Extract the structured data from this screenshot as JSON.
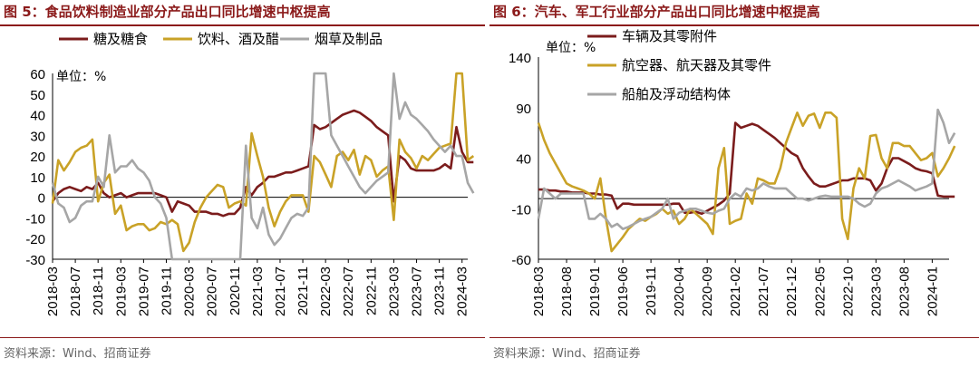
{
  "charts": [
    {
      "title": "图 5：食品饮料制造业部分产品出口同比增速中枢提高",
      "source": "资料来源：Wind、招商证券",
      "chart_data": {
        "type": "line",
        "unit_label": "单位：%",
        "ylim": [
          -30,
          60
        ],
        "yticks": [
          -30,
          -20,
          -10,
          0,
          10,
          20,
          30,
          40,
          50,
          60
        ],
        "x_start": "2018-03",
        "x_end": "2024-04",
        "xtick_labels": [
          "2018-03",
          "2018-07",
          "2018-11",
          "2019-03",
          "2019-07",
          "2019-11",
          "2020-03",
          "2020-07",
          "2020-11",
          "2021-03",
          "2021-07",
          "2021-11",
          "2022-03",
          "2022-07",
          "2022-11",
          "2023-03",
          "2023-07",
          "2023-11",
          "2024-03"
        ],
        "legend_position": "top",
        "series": [
          {
            "name": "糖及糖食",
            "color": "#7B1C1C",
            "values": [
              -2,
              2,
              4,
              5,
              4,
              3,
              5,
              4,
              7,
              2,
              0,
              1,
              2,
              0,
              1,
              2,
              2,
              2,
              2,
              1,
              0,
              -7,
              -2,
              -3,
              -4,
              -7,
              -7,
              -7,
              -8,
              -8,
              -9,
              -8,
              -8,
              -5,
              5,
              1,
              5,
              7,
              10,
              10,
              11,
              12,
              12,
              13,
              14,
              15,
              35,
              33,
              34,
              36,
              38,
              40,
              41,
              42,
              41,
              39,
              37,
              34,
              32,
              30,
              -2,
              20,
              18,
              14,
              13,
              13,
              13,
              13,
              14,
              16,
              14,
              34,
              22,
              17,
              17
            ]
          },
          {
            "name": "饮料、酒及醋",
            "color": "#C9A227",
            "values": [
              -3,
              18,
              13,
              17,
              22,
              24,
              25,
              28,
              -2,
              7,
              11,
              -8,
              -4,
              -16,
              -14,
              -13,
              -13,
              -16,
              -15,
              -12,
              -13,
              -11,
              -13,
              -26,
              -22,
              -12,
              -5,
              0,
              3,
              6,
              5,
              -5,
              -3,
              -2,
              -4,
              31,
              20,
              10,
              -5,
              -14,
              -7,
              -2,
              1,
              1,
              1,
              -7,
              20,
              17,
              11,
              5,
              20,
              22,
              18,
              23,
              11,
              20,
              18,
              10,
              13,
              15,
              -11,
              28,
              22,
              19,
              14,
              20,
              18,
              21,
              24,
              25,
              26,
              60,
              60,
              18,
              20
            ]
          },
          {
            "name": "烟草及制品",
            "color": "#A6A6A6",
            "values": [
              7,
              -3,
              -5,
              -12,
              -10,
              -4,
              -2,
              -2,
              10,
              5,
              30,
              12,
              15,
              15,
              18,
              14,
              12,
              8,
              0,
              -3,
              -10,
              -32,
              -30,
              -30,
              -30,
              -30,
              -30,
              -30,
              -30,
              -30,
              -30,
              -30,
              -30,
              -30,
              25,
              -10,
              -15,
              -5,
              -18,
              -23,
              -20,
              -15,
              -10,
              -8,
              -9,
              -5,
              60,
              60,
              60,
              30,
              25,
              20,
              15,
              10,
              5,
              2,
              5,
              8,
              10,
              12,
              60,
              38,
              46,
              40,
              38,
              35,
              32,
              28,
              25,
              22,
              25,
              20,
              20,
              7,
              2
            ]
          }
        ]
      }
    },
    {
      "title": "图 6：汽车、军工行业部分产品出口同比增速中枢提高",
      "source": "资料来源：Wind、招商证券",
      "chart_data": {
        "type": "line",
        "unit_label": "单位：%",
        "ylim": [
          -60,
          140
        ],
        "yticks": [
          -60,
          -10,
          40,
          90,
          140
        ],
        "x_start": "2018-03",
        "x_end": "2024-04",
        "xtick_labels": [
          "2018-03",
          "2018-08",
          "2019-01",
          "2019-06",
          "2019-11",
          "2020-04",
          "2020-09",
          "2021-02",
          "2021-07",
          "2021-12",
          "2022-05",
          "2022-10",
          "2023-03",
          "2023-08",
          "2024-01"
        ],
        "legend_position": "top-left",
        "series": [
          {
            "name": "车辆及其零附件",
            "color": "#7B1C1C",
            "values": [
              9,
              9,
              8,
              8,
              7,
              7,
              6,
              6,
              6,
              5,
              5,
              4,
              4,
              3,
              -10,
              -5,
              -5,
              -6,
              -6,
              -6,
              -6,
              -6,
              -6,
              -6,
              -5,
              -5,
              -14,
              -14,
              -13,
              -15,
              -12,
              -9,
              -6,
              -2,
              5,
              75,
              70,
              72,
              74,
              72,
              68,
              64,
              60,
              55,
              50,
              45,
              42,
              30,
              22,
              15,
              12,
              12,
              14,
              16,
              18,
              18,
              20,
              20,
              20,
              18,
              8,
              15,
              30,
              40,
              40,
              37,
              34,
              30,
              28,
              27,
              25,
              3,
              2,
              2,
              2
            ]
          },
          {
            "name": "航空器、航天器及其零件",
            "color": "#C9A227",
            "values": [
              75,
              58,
              45,
              35,
              25,
              15,
              12,
              10,
              8,
              5,
              0,
              20,
              -20,
              -52,
              -45,
              -38,
              -30,
              -25,
              -20,
              -22,
              -18,
              -15,
              -10,
              -15,
              -12,
              -25,
              -20,
              -10,
              -15,
              -20,
              -25,
              -35,
              30,
              50,
              -25,
              -22,
              -20,
              5,
              -5,
              20,
              18,
              15,
              15,
              30,
              55,
              70,
              85,
              72,
              82,
              84,
              70,
              85,
              85,
              80,
              -20,
              -40,
              10,
              30,
              20,
              62,
              63,
              40,
              30,
              55,
              55,
              52,
              52,
              45,
              38,
              40,
              45,
              22,
              30,
              40,
              52
            ]
          },
          {
            "name": "船舶及浮动结构体",
            "color": "#A6A6A6",
            "values": [
              -20,
              10,
              5,
              0,
              5,
              5,
              5,
              5,
              5,
              -20,
              -20,
              -15,
              -20,
              -28,
              -25,
              -30,
              -28,
              -25,
              -22,
              -20,
              -18,
              -14,
              -10,
              0,
              -20,
              -14,
              -12,
              -10,
              -10,
              -12,
              -14,
              -15,
              -12,
              -10,
              0,
              5,
              2,
              10,
              8,
              10,
              15,
              12,
              10,
              10,
              10,
              5,
              0,
              0,
              -2,
              0,
              2,
              3,
              2,
              2,
              2,
              2,
              0,
              -5,
              -8,
              -5,
              5,
              10,
              12,
              15,
              18,
              15,
              12,
              8,
              10,
              12,
              15,
              88,
              75,
              55,
              65
            ]
          }
        ]
      }
    }
  ]
}
